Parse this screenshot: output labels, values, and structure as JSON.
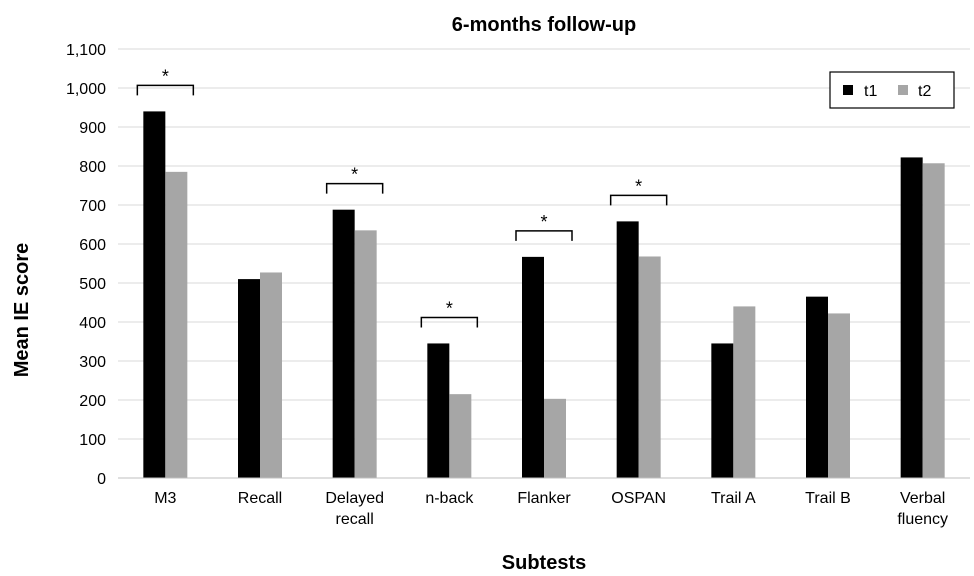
{
  "chart_data": {
    "type": "bar",
    "title": "6-months follow-up",
    "xlabel": "Subtests",
    "ylabel": "Mean IE score",
    "ylim": [
      0,
      1100
    ],
    "yticks": [
      "0",
      "100",
      "200",
      "300",
      "400",
      "500",
      "600",
      "700",
      "800",
      "900",
      "1,000",
      "1,100"
    ],
    "grid": true,
    "legend_position": "top-right",
    "categories": [
      [
        "M3"
      ],
      [
        "Recall"
      ],
      [
        "Delayed",
        "recall"
      ],
      [
        "n-back"
      ],
      [
        "Flanker"
      ],
      [
        "OSPAN"
      ],
      [
        "Trail A"
      ],
      [
        "Trail B"
      ],
      [
        "Verbal",
        "fluency"
      ]
    ],
    "series": [
      {
        "name": "t1",
        "color": "#000000",
        "values": [
          940,
          510,
          688,
          345,
          567,
          658,
          345,
          465,
          822
        ]
      },
      {
        "name": "t2",
        "color": "#a6a6a6",
        "values": [
          785,
          527,
          635,
          215,
          203,
          568,
          440,
          422,
          807
        ]
      }
    ],
    "significance_marks": [
      {
        "category_index": 0,
        "symbol": "*"
      },
      {
        "category_index": 2,
        "symbol": "*"
      },
      {
        "category_index": 3,
        "symbol": "*"
      },
      {
        "category_index": 4,
        "symbol": "*"
      },
      {
        "category_index": 5,
        "symbol": "*"
      }
    ]
  }
}
